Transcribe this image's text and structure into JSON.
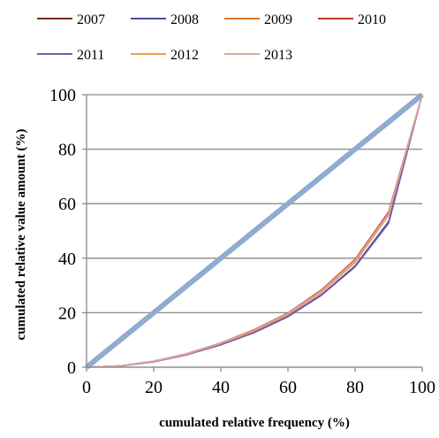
{
  "chart_data": {
    "type": "line",
    "xlabel": "cumulated relative frequency (%)",
    "ylabel": "cumulated relative value amount (%)",
    "xlim": [
      0,
      100
    ],
    "ylim": [
      0,
      100
    ],
    "x_ticks": [
      "0",
      "20",
      "40",
      "60",
      "80",
      "100"
    ],
    "y_ticks": [
      "0",
      "20",
      "40",
      "60",
      "80",
      "100"
    ],
    "grid": "horizontal",
    "legend_position": "top",
    "x": [
      0,
      10,
      20,
      30,
      40,
      50,
      60,
      70,
      80,
      90,
      100
    ],
    "series": [
      {
        "name": "2007",
        "color": "#7b2d26",
        "values": [
          0,
          0.5,
          2.2,
          4.9,
          8.8,
          13.6,
          19.6,
          28.0,
          39.2,
          56.6,
          100
        ]
      },
      {
        "name": "2008",
        "color": "#4a4f96",
        "values": [
          0,
          0.4,
          2.0,
          4.6,
          8.3,
          12.8,
          18.7,
          26.7,
          37.2,
          53.5,
          100
        ]
      },
      {
        "name": "2009",
        "color": "#e07a2a",
        "values": [
          0,
          0.5,
          2.1,
          4.8,
          8.6,
          13.3,
          19.3,
          27.6,
          38.5,
          55.8,
          100
        ]
      },
      {
        "name": "2010",
        "color": "#c0392b",
        "values": [
          0,
          0.5,
          2.2,
          5.0,
          8.9,
          13.8,
          19.9,
          28.4,
          39.6,
          57.0,
          100
        ]
      },
      {
        "name": "2011",
        "color": "#7b59b0",
        "values": [
          0,
          0.4,
          2.0,
          4.6,
          8.2,
          12.7,
          18.5,
          26.4,
          36.8,
          52.8,
          100
        ]
      },
      {
        "name": "2012",
        "color": "#f0a050",
        "values": [
          0,
          0.5,
          2.1,
          4.8,
          8.7,
          13.4,
          19.5,
          27.8,
          38.8,
          56.0,
          100
        ]
      },
      {
        "name": "2013",
        "color": "#d9a7a0",
        "values": [
          0,
          0.5,
          2.2,
          4.9,
          8.8,
          13.6,
          19.7,
          28.1,
          39.2,
          56.4,
          100
        ]
      }
    ],
    "equality_line": {
      "color": "#8fabd0",
      "values": [
        0,
        10,
        20,
        30,
        40,
        50,
        60,
        70,
        80,
        90,
        100
      ]
    }
  }
}
